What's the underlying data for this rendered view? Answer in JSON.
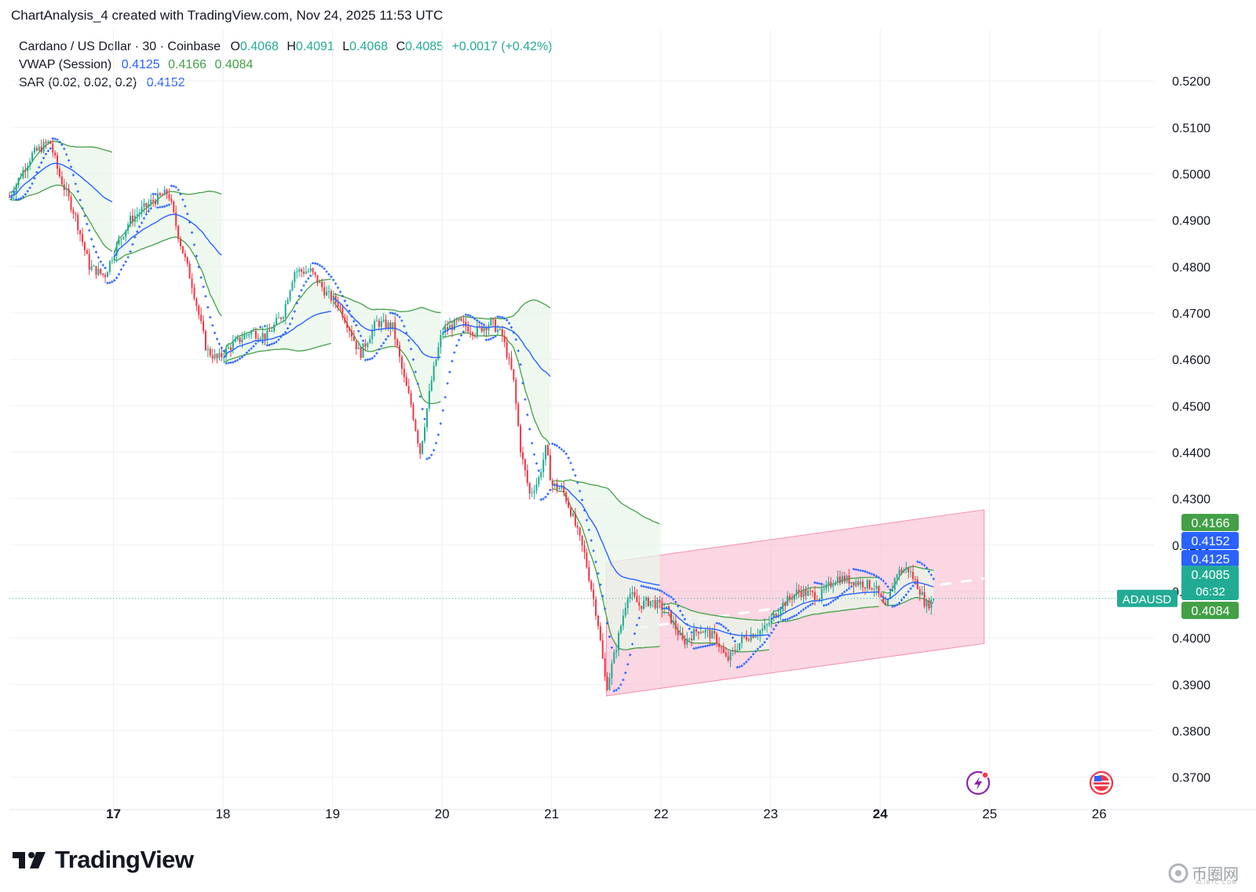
{
  "header": {
    "credit": "ChartAnalysis_4 created with TradingView.com, Nov 24, 2025 11:53 UTC"
  },
  "legend": {
    "symbol": "Cardano / US Dollar · 30 · Coinbase",
    "o_label": "O",
    "o_value": "0.4068",
    "h_label": "H",
    "h_value": "0.4091",
    "l_label": "L",
    "l_value": "0.4068",
    "c_label": "C",
    "c_value": "0.4085",
    "change": "+0.0017 (+0.42%)",
    "vwap_label": "VWAP (Session)",
    "vwap_values": [
      "0.4125",
      "0.4166",
      "0.4084"
    ],
    "sar_label": "SAR (0.02, 0.02, 0.2)",
    "sar_value": "0.4152"
  },
  "price_axis": {
    "badges": [
      {
        "label": "0.4166",
        "price": 0.4166,
        "color": "#43a047"
      },
      {
        "label": "0.4152",
        "price": 0.4152,
        "color": "#2962ff"
      },
      {
        "label": "0.4125",
        "price": 0.4125,
        "color": "#2962ff"
      },
      {
        "label": "0.4085",
        "sublabel": "06:32",
        "price": 0.4085,
        "color": "#22ab94"
      },
      {
        "label": "0.4084",
        "price": 0.4084,
        "color": "#43a047"
      }
    ],
    "symbol_tag": "ADAUSD"
  },
  "branding": {
    "logo": "TradingView",
    "watermark": "币圈网",
    "watermark_sub": "ALIBTC.COM"
  },
  "colors": {
    "up": "#22ab94",
    "down": "#f23645",
    "vwap": "#2962ff",
    "band": "#43a047",
    "band_fill": "#e8f5e9",
    "sar": "#2962ff",
    "channel": "#f8bbd0",
    "grid": "#eef0f3"
  },
  "icons": [
    "lightning-event-icon",
    "us-flag-event-icon"
  ],
  "chart_data": {
    "type": "candlestick",
    "symbol": "ADAUSD",
    "interval": "30",
    "x_ticks": [
      "17",
      "18",
      "19",
      "20",
      "21",
      "22",
      "23",
      "24",
      "25",
      "26"
    ],
    "y_ticks": [
      "0.5200",
      "0.5100",
      "0.5000",
      "0.4900",
      "0.4800",
      "0.4700",
      "0.4600",
      "0.4500",
      "0.4400",
      "0.4300",
      "0.4200",
      "0.4100",
      "0.4000",
      "0.3900",
      "0.3800",
      "0.3700"
    ],
    "ylim": [
      0.363,
      0.531
    ],
    "x_range_days": [
      16.05,
      26.5
    ],
    "last_close": 0.4085,
    "price_path": [
      [
        16.05,
        0.495
      ],
      [
        16.25,
        0.504
      ],
      [
        16.42,
        0.507
      ],
      [
        16.5,
        0.5
      ],
      [
        16.65,
        0.491
      ],
      [
        16.78,
        0.48
      ],
      [
        16.92,
        0.478
      ],
      [
        17.0,
        0.483
      ],
      [
        17.15,
        0.49
      ],
      [
        17.35,
        0.494
      ],
      [
        17.5,
        0.496
      ],
      [
        17.6,
        0.486
      ],
      [
        17.72,
        0.476
      ],
      [
        17.85,
        0.462
      ],
      [
        17.95,
        0.46
      ],
      [
        18.08,
        0.463
      ],
      [
        18.25,
        0.466
      ],
      [
        18.4,
        0.465
      ],
      [
        18.55,
        0.47
      ],
      [
        18.65,
        0.479
      ],
      [
        18.8,
        0.479
      ],
      [
        18.95,
        0.474
      ],
      [
        19.05,
        0.472
      ],
      [
        19.15,
        0.467
      ],
      [
        19.25,
        0.461
      ],
      [
        19.4,
        0.468
      ],
      [
        19.55,
        0.467
      ],
      [
        19.65,
        0.456
      ],
      [
        19.72,
        0.45
      ],
      [
        19.8,
        0.44
      ],
      [
        19.9,
        0.455
      ],
      [
        20.0,
        0.466
      ],
      [
        20.15,
        0.468
      ],
      [
        20.3,
        0.466
      ],
      [
        20.45,
        0.468
      ],
      [
        20.55,
        0.465
      ],
      [
        20.65,
        0.456
      ],
      [
        20.72,
        0.44
      ],
      [
        20.8,
        0.431
      ],
      [
        20.88,
        0.434
      ],
      [
        20.95,
        0.441
      ],
      [
        21.0,
        0.433
      ],
      [
        21.1,
        0.432
      ],
      [
        21.18,
        0.427
      ],
      [
        21.3,
        0.418
      ],
      [
        21.42,
        0.404
      ],
      [
        21.5,
        0.389
      ],
      [
        21.6,
        0.399
      ],
      [
        21.7,
        0.41
      ],
      [
        21.8,
        0.407
      ],
      [
        21.9,
        0.408
      ],
      [
        22.05,
        0.406
      ],
      [
        22.2,
        0.399
      ],
      [
        22.35,
        0.402
      ],
      [
        22.5,
        0.4
      ],
      [
        22.6,
        0.395
      ],
      [
        22.75,
        0.4
      ],
      [
        22.95,
        0.402
      ],
      [
        23.1,
        0.407
      ],
      [
        23.25,
        0.41
      ],
      [
        23.45,
        0.409
      ],
      [
        23.6,
        0.413
      ],
      [
        23.8,
        0.412
      ],
      [
        23.95,
        0.411
      ],
      [
        24.05,
        0.406
      ],
      [
        24.15,
        0.414
      ],
      [
        24.25,
        0.415
      ],
      [
        24.35,
        0.411
      ],
      [
        24.42,
        0.407
      ],
      [
        24.5,
        0.4085
      ]
    ],
    "channel": {
      "lower": [
        [
          21.5,
          0.3875
        ],
        [
          24.95,
          0.3988
        ]
      ],
      "upper": [
        [
          21.5,
          0.4162
        ],
        [
          24.95,
          0.4276
        ]
      ],
      "midline": [
        [
          21.6,
          0.4015
        ],
        [
          24.95,
          0.4128
        ]
      ]
    },
    "annotations": [
      "ADAUSD 0.4085",
      "06:32"
    ]
  }
}
